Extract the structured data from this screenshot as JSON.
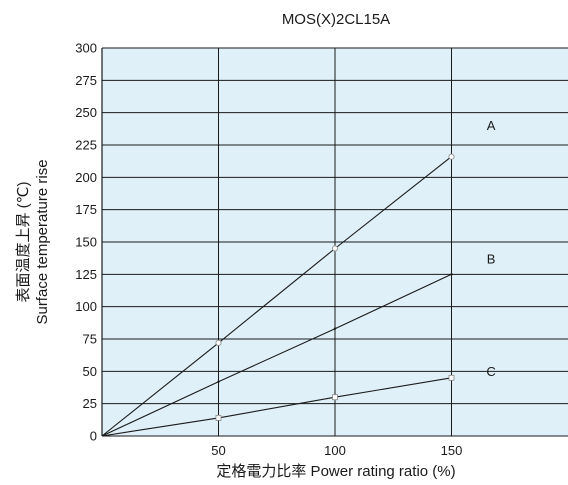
{
  "chart_data": {
    "type": "line",
    "title": "MOS(X)2CL15A",
    "xlabel": "定格電力比率 Power rating ratio (%)",
    "ylabel_line1": "表面温度上昇 (℃)",
    "ylabel_line2": "Surface temperature rise",
    "xlim": [
      0,
      200
    ],
    "ylim": [
      0,
      300
    ],
    "x_ticks": [
      50,
      100,
      150
    ],
    "y_ticks": [
      0,
      25,
      50,
      75,
      100,
      125,
      150,
      175,
      200,
      225,
      250,
      275,
      300
    ],
    "grid": true,
    "background_color": "#dff0f8",
    "line_color": "#1a1a1a",
    "series": [
      {
        "name": "A",
        "x": [
          0,
          50,
          100,
          150
        ],
        "y": [
          0,
          72,
          145,
          216
        ],
        "label_pos": [
          167,
          240
        ]
      },
      {
        "name": "B",
        "x": [
          0,
          50,
          100,
          150
        ],
        "y": [
          0,
          42,
          83,
          125
        ],
        "label_pos": [
          167,
          137
        ]
      },
      {
        "name": "C",
        "x": [
          0,
          50,
          100,
          150
        ],
        "y": [
          0,
          14,
          30,
          45
        ],
        "label_pos": [
          167,
          50
        ]
      }
    ]
  }
}
